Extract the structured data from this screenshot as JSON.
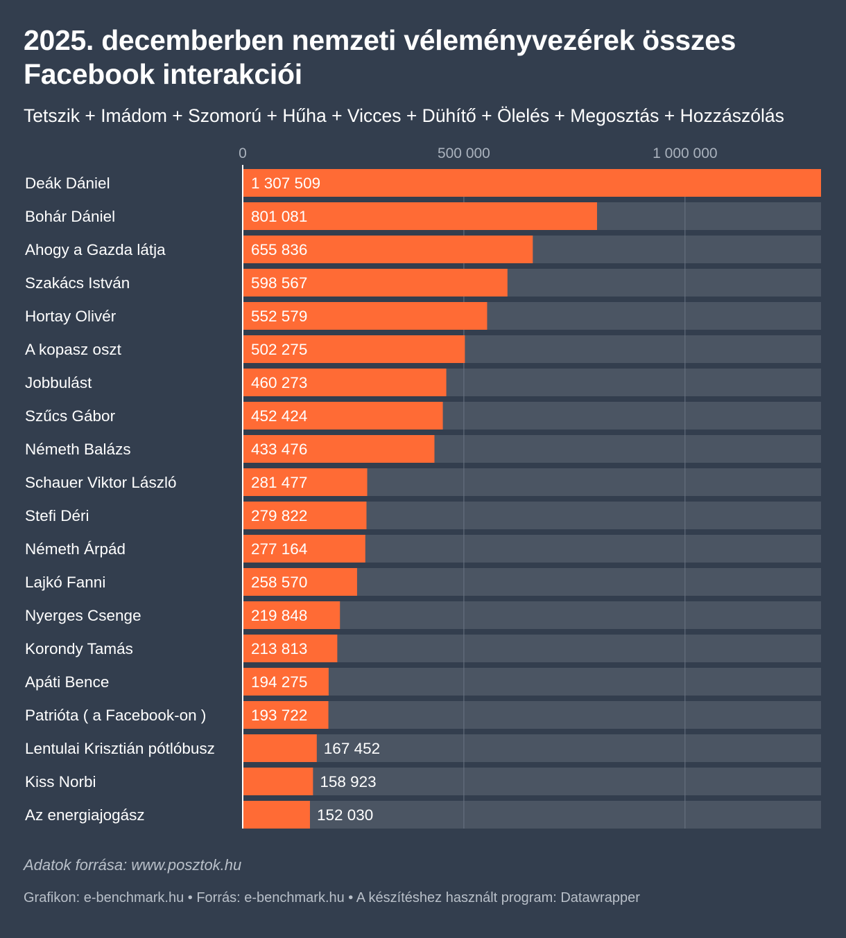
{
  "chart_data": {
    "type": "bar",
    "orientation": "horizontal",
    "title": "2025. decemberben nemzeti véleményvezérek összes Facebook interakciói",
    "subtitle": "Tetszik + Imádom + Szomorú + Hűha + Vicces + Dühítő + Ölelés + Megosztás + Hozzászólás",
    "categories": [
      "Deák Dániel",
      "Bohár Dániel",
      "Ahogy a Gazda látja",
      "Szakács István",
      "Hortay Olivér",
      "A kopasz oszt",
      "Jobbulást",
      "Szűcs Gábor",
      "Németh Balázs",
      "Schauer Viktor László",
      "Stefi Déri",
      "Németh Árpád",
      "Lajkó Fanni",
      "Nyerges Csenge",
      "Korondy Tamás",
      "Apáti Bence",
      "Patrióta ( a Facebook-on )",
      "Lentulai Krisztián pótlóbusz",
      "Kiss Norbi",
      "Az energiajogász"
    ],
    "values": [
      1307509,
      801081,
      655836,
      598567,
      552579,
      502275,
      460273,
      452424,
      433476,
      281477,
      279822,
      277164,
      258570,
      219848,
      213813,
      194275,
      193722,
      167452,
      158923,
      152030
    ],
    "value_labels": [
      "1 307 509",
      "801 081",
      "655 836",
      "598 567",
      "552 579",
      "502 275",
      "460 273",
      "452 424",
      "433 476",
      "281 477",
      "279 822",
      "277 164",
      "258 570",
      "219 848",
      "213 813",
      "194 275",
      "193 722",
      "167 452",
      "158 923",
      "152 030"
    ],
    "xlim": [
      0,
      1307509
    ],
    "x_ticks": [
      0,
      500000,
      1000000
    ],
    "x_tick_labels": [
      "0",
      "500 000",
      "1 000 000"
    ],
    "grid": true,
    "bar_color": "#ff6b35",
    "track_color": "#4b5563",
    "background_color": "#333e4e"
  },
  "footer": {
    "source": "Adatok forrása: www.posztok.hu",
    "credits": "Grafikon: e-benchmark.hu • Forrás: e-benchmark.hu • A készítéshez használt program: Datawrapper"
  }
}
